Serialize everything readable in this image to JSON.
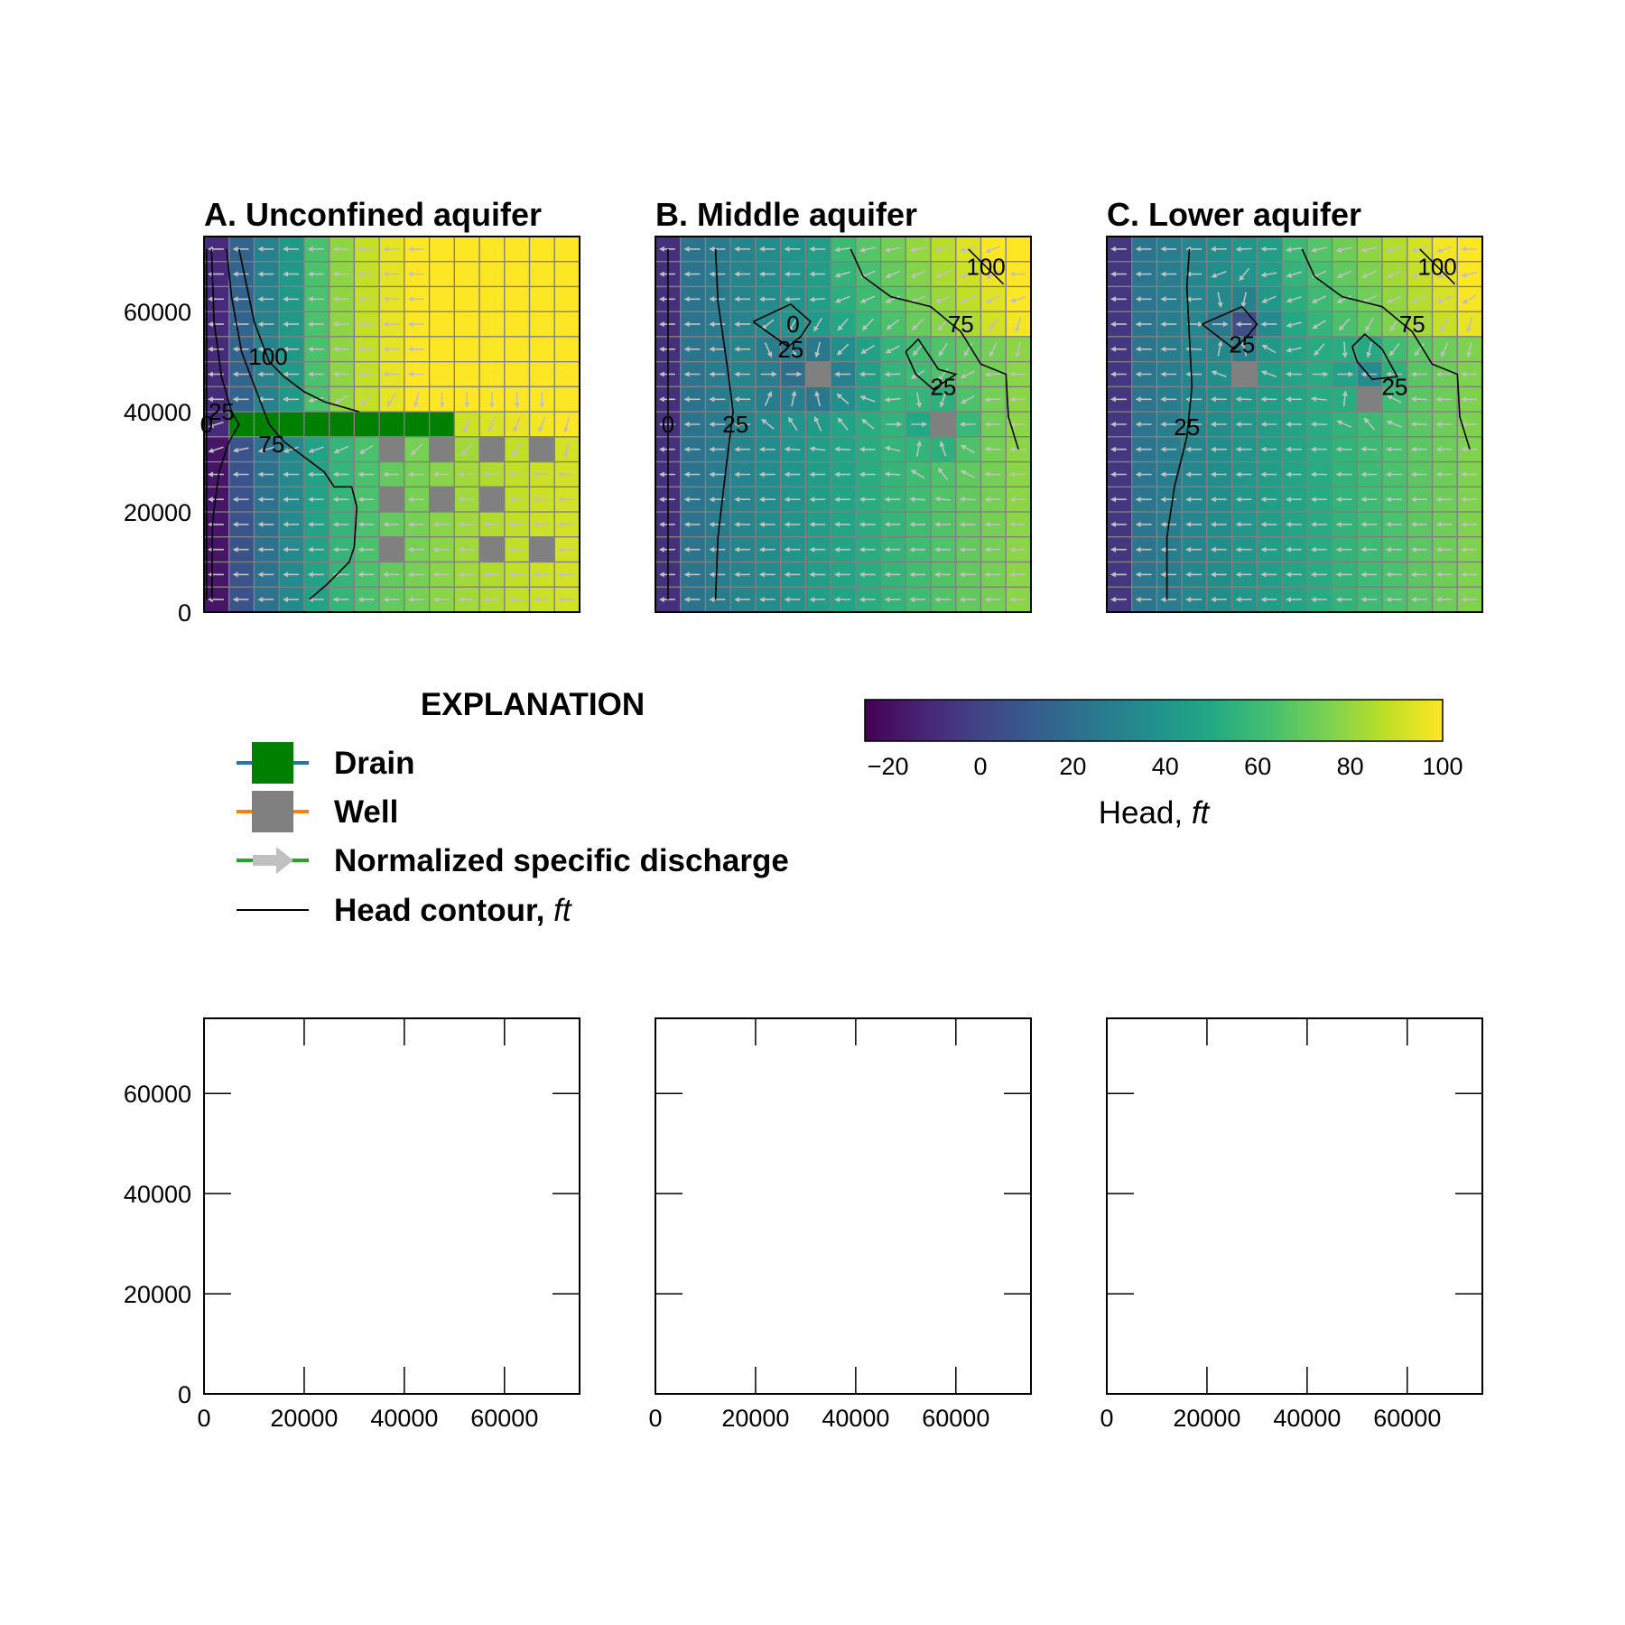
{
  "chart_data": [
    {
      "type": "heatmap",
      "panel": "A",
      "title": "A. Unconfined aquifer",
      "xlim": [
        0,
        75000
      ],
      "ylim": [
        0,
        75000
      ],
      "x_ticks": [],
      "y_ticks": [
        "0",
        "20000",
        "40000",
        "60000"
      ],
      "grid_shape": [
        15,
        15
      ],
      "cell_size": 5000,
      "drain_cells": [
        [
          7,
          1
        ],
        [
          7,
          2
        ],
        [
          7,
          3
        ],
        [
          7,
          4
        ],
        [
          7,
          5
        ],
        [
          7,
          6
        ],
        [
          7,
          7
        ],
        [
          7,
          8
        ],
        [
          7,
          9
        ]
      ],
      "well_cells": [
        [
          8,
          7
        ],
        [
          8,
          9
        ],
        [
          8,
          11
        ],
        [
          8,
          13
        ],
        [
          10,
          7
        ],
        [
          10,
          9
        ],
        [
          10,
          11
        ],
        [
          12,
          7
        ],
        [
          12,
          11
        ],
        [
          12,
          13
        ]
      ],
      "contours": [
        {
          "level": 0,
          "label": "0",
          "points": [
            [
              500,
              72500
            ],
            [
              500,
              2500
            ]
          ],
          "label_at": [
            500,
            37500
          ]
        },
        {
          "level": 25,
          "label": "25",
          "points": [
            [
              1500,
              72500
            ],
            [
              2000,
              58000
            ],
            [
              3500,
              47000
            ],
            [
              5500,
              40000
            ],
            [
              7000,
              37500
            ],
            [
              5000,
              34000
            ],
            [
              3000,
              28000
            ],
            [
              1700,
              18000
            ],
            [
              1600,
              2500
            ]
          ],
          "label_at": [
            3500,
            40000
          ]
        },
        {
          "level": 75,
          "label": "75",
          "points": [
            [
              4500,
              72500
            ],
            [
              5500,
              63000
            ],
            [
              7500,
              52000
            ],
            [
              10500,
              44000
            ],
            [
              13000,
              37500
            ],
            [
              16000,
              34000
            ],
            [
              20000,
              31000
            ],
            [
              24000,
              28000
            ],
            [
              26000,
              25000
            ],
            [
              29500,
              25000
            ],
            [
              30500,
              21000
            ],
            [
              30000,
              13000
            ],
            [
              29000,
              10000
            ],
            [
              27000,
              8000
            ],
            [
              24500,
              5500
            ],
            [
              21000,
              2500
            ]
          ],
          "label_at": [
            13500,
            33500
          ]
        },
        {
          "level": 100,
          "label": "100",
          "points": [
            [
              7000,
              72500
            ],
            [
              10000,
              58000
            ],
            [
              13000,
              50000
            ],
            [
              16000,
              47000
            ],
            [
              20000,
              44000
            ],
            [
              24000,
              42000
            ],
            [
              31000,
              40000
            ]
          ],
          "label_at": [
            12800,
            51000
          ]
        }
      ]
    },
    {
      "type": "heatmap",
      "panel": "B",
      "title": "B. Middle aquifer",
      "xlim": [
        0,
        75000
      ],
      "ylim": [
        0,
        75000
      ],
      "x_ticks": [],
      "y_ticks": [],
      "grid_shape": [
        15,
        15
      ],
      "cell_size": 5000,
      "well_cells": [
        [
          5,
          6
        ],
        [
          7,
          11
        ]
      ],
      "contours": [
        {
          "level": 0,
          "label": "0",
          "points": [
            [
              2500,
              72500
            ],
            [
              2500,
              2500
            ]
          ],
          "label_at": [
            2500,
            37500
          ]
        },
        {
          "level": 0,
          "label": "0",
          "points": [
            [
              27500,
              57500
            ]
          ],
          "label_at": [
            27500,
            57500
          ]
        },
        {
          "level": 25,
          "label": "25",
          "points": [
            [
              12000,
              72500
            ],
            [
              12500,
              62000
            ],
            [
              14500,
              48000
            ],
            [
              15500,
              40000
            ],
            [
              14000,
              28000
            ],
            [
              12500,
              15000
            ],
            [
              12000,
              2500
            ]
          ],
          "label_at": [
            16000,
            37500
          ]
        },
        {
          "level": 25,
          "label": "25",
          "points": [
            [
              19500,
              58000
            ],
            [
              27000,
              61500
            ],
            [
              31000,
              58000
            ],
            [
              29000,
              55000
            ],
            [
              26500,
              53000
            ],
            [
              23000,
              55500
            ],
            [
              19500,
              58000
            ]
          ],
          "label_at": [
            27000,
            52500
          ]
        },
        {
          "level": 25,
          "label": "25",
          "points": [
            [
              50000,
              52000
            ],
            [
              52500,
              54500
            ],
            [
              56500,
              48500
            ],
            [
              60000,
              47500
            ],
            [
              55500,
              44500
            ],
            [
              52000,
              47500
            ],
            [
              50000,
              52000
            ]
          ],
          "label_at": [
            57500,
            45000
          ]
        },
        {
          "level": 75,
          "label": "75",
          "points": [
            [
              39000,
              72500
            ],
            [
              41500,
              67000
            ],
            [
              47000,
              63000
            ],
            [
              55000,
              61000
            ],
            [
              61000,
              56000
            ],
            [
              65000,
              49500
            ],
            [
              70000,
              47500
            ],
            [
              70500,
              39000
            ],
            [
              72500,
              32500
            ]
          ],
          "label_at": [
            61000,
            57500
          ]
        },
        {
          "level": 100,
          "label": "100",
          "points": [
            [
              62500,
              72500
            ],
            [
              69500,
              65500
            ]
          ],
          "label_at": [
            66000,
            69000
          ]
        }
      ]
    },
    {
      "type": "heatmap",
      "panel": "C",
      "title": "C. Lower aquifer",
      "xlim": [
        0,
        75000
      ],
      "ylim": [
        0,
        75000
      ],
      "x_ticks": [],
      "y_ticks": [],
      "grid_shape": [
        15,
        15
      ],
      "cell_size": 5000,
      "well_cells": [
        [
          5,
          5
        ],
        [
          6,
          10
        ]
      ],
      "contours": [
        {
          "level": 25,
          "label": "25",
          "points": [
            [
              16500,
              72500
            ],
            [
              16000,
              65000
            ],
            [
              16500,
              55000
            ],
            [
              17000,
              45000
            ],
            [
              16000,
              35000
            ],
            [
              13500,
              25000
            ],
            [
              12000,
              15000
            ],
            [
              12000,
              2500
            ]
          ],
          "label_at": [
            16000,
            37000
          ]
        },
        {
          "level": 25,
          "label": "25",
          "points": [
            [
              19000,
              57500
            ],
            [
              27000,
              61000
            ],
            [
              30000,
              57500
            ],
            [
              28000,
              55000
            ],
            [
              25500,
              52500
            ],
            [
              19000,
              57500
            ]
          ],
          "label_at": [
            27000,
            53500
          ]
        },
        {
          "level": 25,
          "label": "25",
          "points": [
            [
              49000,
              53000
            ],
            [
              51500,
              55500
            ],
            [
              55000,
              52500
            ],
            [
              58000,
              47000
            ],
            [
              53000,
              46500
            ],
            [
              50000,
              50000
            ],
            [
              49000,
              53000
            ]
          ],
          "label_at": [
            57500,
            45000
          ]
        },
        {
          "level": 75,
          "label": "75",
          "points": [
            [
              39000,
              72500
            ],
            [
              41500,
              67000
            ],
            [
              47000,
              63000
            ],
            [
              55000,
              61000
            ],
            [
              61000,
              56000
            ],
            [
              65000,
              49500
            ],
            [
              70000,
              47500
            ],
            [
              70500,
              39000
            ],
            [
              72500,
              32500
            ]
          ],
          "label_at": [
            61000,
            57500
          ]
        },
        {
          "level": 100,
          "label": "100",
          "points": [
            [
              62500,
              72500
            ],
            [
              69500,
              65500
            ]
          ],
          "label_at": [
            66000,
            69000
          ]
        }
      ]
    },
    {
      "type": "scatter",
      "panel": "D",
      "title": "",
      "xlim": [
        0,
        75000
      ],
      "ylim": [
        0,
        75000
      ],
      "x_ticks": [
        "0",
        "20000",
        "40000",
        "60000"
      ],
      "y_ticks": [
        "0",
        "20000",
        "40000",
        "60000"
      ]
    },
    {
      "type": "scatter",
      "panel": "E",
      "title": "",
      "xlim": [
        0,
        75000
      ],
      "ylim": [
        0,
        75000
      ],
      "x_ticks": [
        "0",
        "20000",
        "40000",
        "60000"
      ],
      "y_ticks": []
    },
    {
      "type": "scatter",
      "panel": "F",
      "title": "",
      "xlim": [
        0,
        75000
      ],
      "ylim": [
        0,
        75000
      ],
      "x_ticks": [
        "0",
        "20000",
        "40000",
        "60000"
      ],
      "y_ticks": []
    }
  ],
  "legend": {
    "title": "EXPLANATION",
    "items": [
      {
        "label": "Drain",
        "symbol": "drain",
        "patch_color": "#008000",
        "line_color": "#1f77b4"
      },
      {
        "label": "Well",
        "symbol": "well",
        "patch_color": "#808080",
        "line_color": "#ff7f0e"
      },
      {
        "label": "Normalized specific discharge",
        "symbol": "arrow",
        "patch_color": "#c0c0c0",
        "line_color": "#2ca02c"
      },
      {
        "label": "Head contour, ",
        "label_italic": "ft",
        "symbol": "line",
        "line_color": "#000000"
      }
    ]
  },
  "colorbar": {
    "label": "Head, ",
    "label_italic": "ft",
    "colormap": "viridis",
    "range": [
      -25,
      100
    ],
    "ticks": [
      "−20",
      "0",
      "20",
      "40",
      "60",
      "80",
      "100"
    ],
    "tick_values": [
      -20,
      0,
      20,
      40,
      60,
      80,
      100
    ]
  },
  "colors": {
    "drain": "#008000",
    "well": "#808080",
    "grid_lines": "#808080",
    "discharge_arrow": "#c0c0c0",
    "contour": "#000000"
  }
}
